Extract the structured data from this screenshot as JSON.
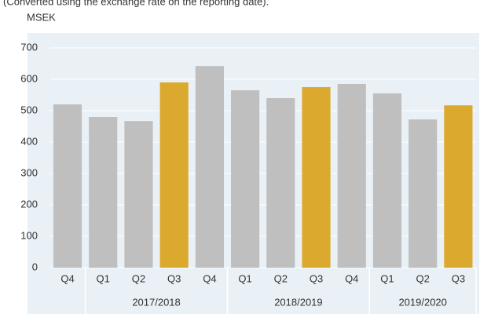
{
  "chart_data": {
    "type": "bar",
    "subtitle": "(Converted using the exchange rate on the reporting date).",
    "y_label": "MSEK",
    "categories": [
      "Q4",
      "Q1",
      "Q2",
      "Q3",
      "Q4",
      "Q1",
      "Q2",
      "Q3",
      "Q4",
      "Q1",
      "Q2",
      "Q3"
    ],
    "category_groups": [
      null,
      "2017/2018",
      "2017/2018",
      "2017/2018",
      "2017/2018",
      "2018/2019",
      "2018/2019",
      "2018/2019",
      "2018/2019",
      "2019/2020",
      "2019/2020",
      "2019/2020"
    ],
    "values": [
      520,
      480,
      467,
      590,
      642,
      565,
      540,
      575,
      585,
      555,
      472,
      517
    ],
    "colors": [
      "#bfbfbf",
      "#bfbfbf",
      "#bfbfbf",
      "#dca92f",
      "#bfbfbf",
      "#bfbfbf",
      "#bfbfbf",
      "#dca92f",
      "#bfbfbf",
      "#bfbfbf",
      "#bfbfbf",
      "#dca92f"
    ],
    "ylim": [
      0,
      700
    ],
    "yticks": [
      0,
      100,
      200,
      300,
      400,
      500,
      600,
      700
    ],
    "grid": true
  }
}
